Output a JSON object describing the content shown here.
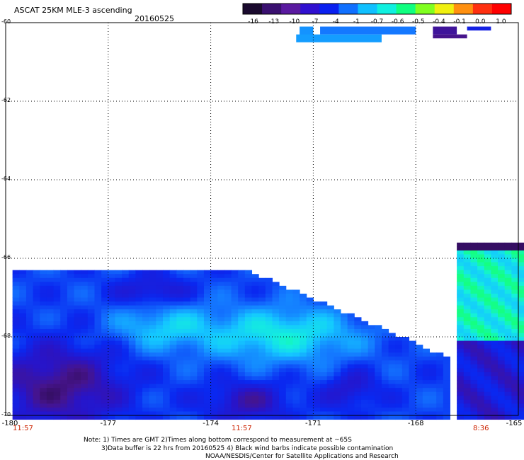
{
  "header": {
    "title": "ASCAT 25KM MLE-3 ascending",
    "date": "20160525"
  },
  "colorbar": {
    "labels": [
      "-16",
      "-13",
      "-10",
      "-7",
      "-4",
      "-1",
      "-0.7",
      "-0.6",
      "-0.5",
      "-0.4",
      "-0.1",
      "0.0",
      "1.0"
    ],
    "colors": [
      "#1a0a2e",
      "#3a1070",
      "#5a1aa0",
      "#3010d0",
      "#0a20f0",
      "#1070ff",
      "#10c0ff",
      "#10f0e0",
      "#10ff80",
      "#80ff20",
      "#f0f010",
      "#ff9010",
      "#ff3010",
      "#ff0000"
    ]
  },
  "chart_data": {
    "type": "heatmap",
    "title": "ASCAT 25KM MLE-3 ascending",
    "xlabel": "",
    "ylabel": "",
    "x_range": [
      -180,
      -165
    ],
    "y_range": [
      -70,
      -60
    ],
    "x_ticks": [
      "-180",
      "-177",
      "-174",
      "-171",
      "-168",
      "-165"
    ],
    "y_ticks": [
      "-60",
      "-62",
      "-64",
      "-66",
      "-68",
      "-70"
    ],
    "grid": true,
    "times": [
      {
        "label": "11:57",
        "lon": -179.7
      },
      {
        "label": "11:57",
        "lon": -173.3
      },
      {
        "label": "8:36",
        "lon": -166.3
      }
    ],
    "regions": [
      {
        "lon": [
          -179.8,
          -176.5
        ],
        "lat": [
          -66.3,
          -70.0
        ],
        "level": "dark-purple"
      },
      {
        "lon": [
          -177.0,
          -171.0
        ],
        "lat": [
          -66.2,
          -69.5
        ],
        "level": "blue"
      },
      {
        "lon": [
          -174.5,
          -168.5
        ],
        "lat": [
          -67.5,
          -69.0
        ],
        "level": "cyan-green"
      },
      {
        "lon": [
          -171.5,
          -167.5
        ],
        "lat": [
          -68.5,
          -70.0
        ],
        "level": "blue"
      },
      {
        "lon": [
          -167.0,
          -165.0
        ],
        "lat": [
          -65.5,
          -68.0
        ],
        "level": "green"
      },
      {
        "lon": [
          -167.5,
          -165.0
        ],
        "lat": [
          -68.0,
          -70.0
        ],
        "level": "purple-blue"
      }
    ]
  },
  "footer": {
    "notes": [
      "Note: 1) Times are GMT 2)Times along bottom correspond to measurement at ~65S",
      "3)Data buffer is 22 hrs from 20160525 4) Black wind barbs indicate possible contamination",
      "NOAA/NESDIS/Center for Satellite Applications and Research"
    ]
  }
}
